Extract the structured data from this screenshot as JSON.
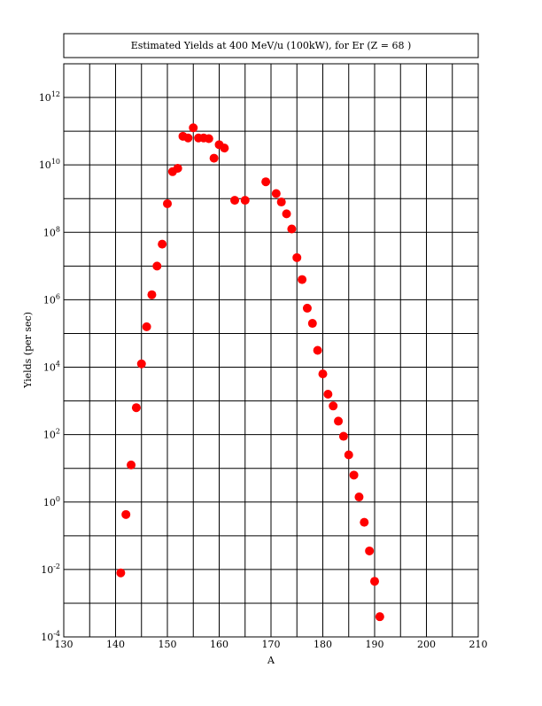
{
  "chart_data": {
    "type": "scatter",
    "title": "Estimated Yields at 400 MeV/u (100kW), for Er (Z = 68 )",
    "xlabel": "A",
    "ylabel": "Yields (per sec)",
    "xlim": [
      130,
      210
    ],
    "ylim_log10": [
      -4,
      13
    ],
    "yscale": "log",
    "grid": true,
    "marker_color": "#ff0000",
    "x_ticks": [
      "130",
      "140",
      "150",
      "160",
      "170",
      "180",
      "190",
      "200",
      "210"
    ],
    "y_ticks": [
      {
        "base": "10",
        "exp": "-4"
      },
      {
        "base": "10",
        "exp": "-2"
      },
      {
        "base": "10",
        "exp": "0"
      },
      {
        "base": "10",
        "exp": "2"
      },
      {
        "base": "10",
        "exp": "4"
      },
      {
        "base": "10",
        "exp": "6"
      },
      {
        "base": "10",
        "exp": "8"
      },
      {
        "base": "10",
        "exp": "10"
      },
      {
        "base": "10",
        "exp": "12"
      }
    ],
    "x": [
      141,
      142,
      143,
      144,
      145,
      146,
      147,
      148,
      149,
      150,
      151,
      152,
      153,
      154,
      155,
      156,
      157,
      158,
      159,
      160,
      161,
      163,
      165,
      169,
      171,
      172,
      173,
      174,
      175,
      176,
      177,
      178,
      179,
      180,
      181,
      182,
      183,
      184,
      185,
      186,
      187,
      188,
      189,
      190,
      191
    ],
    "y_log10": [
      -2.1,
      -0.37,
      1.1,
      2.8,
      4.1,
      5.2,
      6.15,
      7.0,
      7.65,
      8.85,
      9.8,
      9.9,
      10.85,
      10.8,
      11.1,
      10.8,
      10.8,
      10.78,
      10.2,
      10.6,
      10.5,
      8.95,
      8.95,
      9.5,
      9.15,
      8.9,
      8.55,
      8.1,
      7.25,
      6.6,
      5.75,
      5.3,
      4.5,
      3.8,
      3.2,
      2.85,
      2.4,
      1.95,
      1.4,
      0.8,
      0.15,
      -0.6,
      -1.45,
      -2.35,
      -3.4
    ]
  }
}
